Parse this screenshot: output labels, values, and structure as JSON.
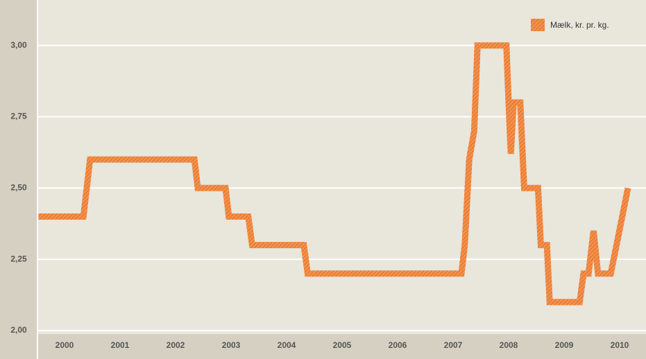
{
  "chart_data": {
    "type": "line",
    "categories": [
      "2000",
      "2001",
      "2002",
      "2003",
      "2004",
      "2005",
      "2006",
      "2007",
      "2008",
      "2009",
      "2010"
    ],
    "series": [
      {
        "name": "Mælk, kr. pr. kg.",
        "color": "#f08a3c",
        "x": [
          2000.03,
          2000.84,
          2000.96,
          2002.84,
          2002.9,
          2003.4,
          2003.46,
          2003.81,
          2003.88,
          2004.81,
          2004.88,
          2007.65,
          2007.71,
          2007.79,
          2007.88,
          2007.94,
          2008.46,
          2008.5,
          2008.54,
          2008.59,
          2008.71,
          2008.78,
          2009.03,
          2009.08,
          2009.19,
          2009.24,
          2009.78,
          2009.85,
          2009.94,
          2010.03,
          2010.11,
          2010.34,
          2010.65
        ],
        "values": [
          2.4,
          2.4,
          2.6,
          2.6,
          2.5,
          2.5,
          2.4,
          2.4,
          2.3,
          2.3,
          2.2,
          2.2,
          2.3,
          2.6,
          2.7,
          3.0,
          3.0,
          2.8,
          2.62,
          2.8,
          2.8,
          2.5,
          2.5,
          2.3,
          2.3,
          2.1,
          2.1,
          2.2,
          2.2,
          2.35,
          2.2,
          2.2,
          2.5
        ]
      }
    ],
    "xlim": [
      2000,
      2010.9
    ],
    "ylim": [
      2.0,
      3.14
    ],
    "yticks": [
      {
        "value": 2.0,
        "label": "2,00"
      },
      {
        "value": 2.25,
        "label": "2,25"
      },
      {
        "value": 2.5,
        "label": "2,50"
      },
      {
        "value": 2.75,
        "label": "2,75"
      },
      {
        "value": 3.0,
        "label": "3,00"
      }
    ],
    "grid": true,
    "legend": "top-right"
  }
}
